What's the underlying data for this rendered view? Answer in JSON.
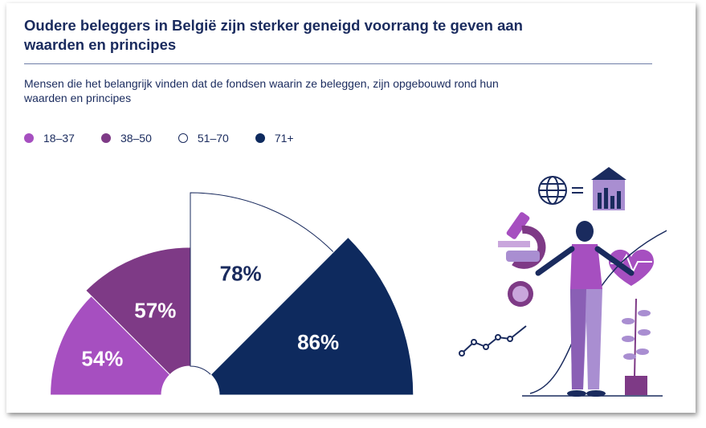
{
  "title": "Oudere beleggers in België zijn sterker geneigd voorrang te geven aan waarden en principes",
  "subtitle": "Mensen die het belangrijk vinden dat de fondsen waarin ze beleggen, zijn opgebouwd rond hun waarden en principes",
  "legend": [
    {
      "label": "18–37",
      "color": "#a64fc0"
    },
    {
      "label": "38–50",
      "color": "#7e3a86"
    },
    {
      "label": "51–70",
      "color": "#ffffff"
    },
    {
      "label": "71+",
      "color": "#0e2a5e"
    }
  ],
  "chart_data": {
    "type": "pie",
    "title": "Oudere beleggers in België zijn sterker geneigd voorrang te geven aan waarden en principes",
    "subtitle": "Mensen die het belangrijk vinden dat de fondsen waarin ze beleggen, zijn opgebouwd rond hun waarden en principes",
    "categories": [
      "18–37",
      "38–50",
      "51–70",
      "71+"
    ],
    "values": [
      54,
      57,
      78,
      86
    ],
    "value_labels": [
      "54%",
      "57%",
      "78%",
      "86%"
    ],
    "colors": [
      "#a64fc0",
      "#7e3a86",
      "#ffffff",
      "#0e2a5e"
    ],
    "legend_position": "top-left"
  }
}
